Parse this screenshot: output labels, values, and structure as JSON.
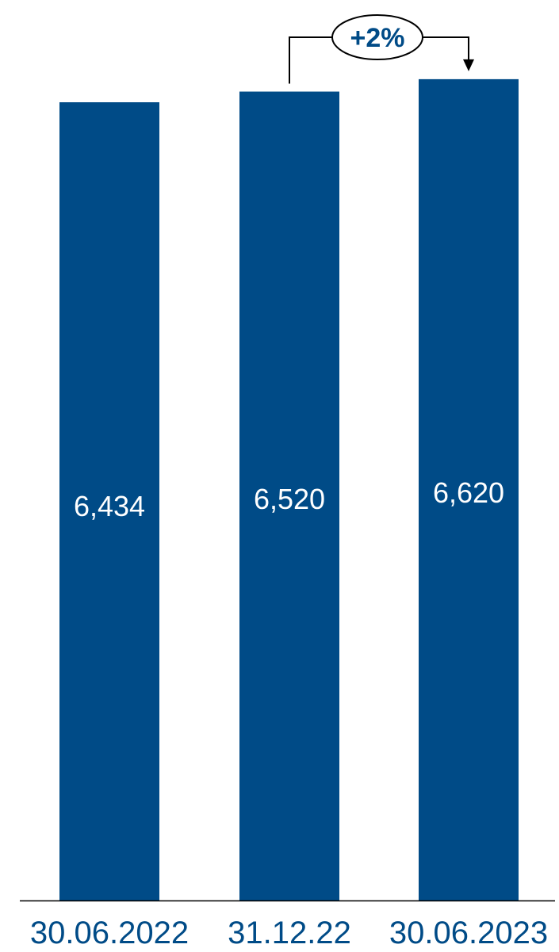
{
  "chart_data": {
    "type": "bar",
    "categories": [
      "30.06.2022",
      "31.12.22",
      "30.06.2023"
    ],
    "values": [
      6434,
      6520,
      6620
    ],
    "value_labels": [
      "6,434",
      "6,520",
      "6,620"
    ],
    "title": "",
    "xlabel": "",
    "ylabel": "",
    "grid": false,
    "legend": "none",
    "annotation": {
      "label": "+2%",
      "from_category": "31.12.22",
      "to_category": "30.06.2023"
    }
  },
  "colors": {
    "bar": "#004b87",
    "value_label": "#ffffff",
    "category_label": "#004b87",
    "axis": "#000000",
    "annotation_text": "#004b87",
    "annotation_line": "#000000"
  }
}
